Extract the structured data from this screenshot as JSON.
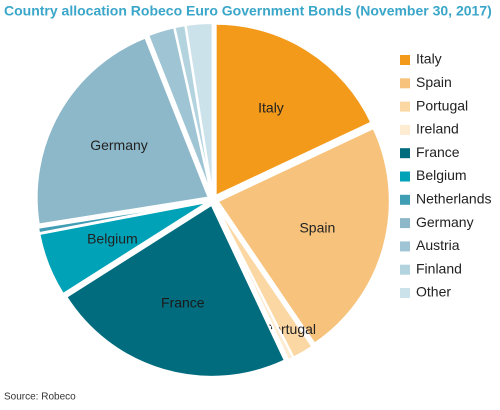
{
  "chart_data": {
    "type": "pie",
    "title": "Country allocation Robeco Euro Government Bonds (November 30, 2017)",
    "categories": [
      "Italy",
      "Spain",
      "Portugal",
      "Ireland",
      "France",
      "Belgium",
      "Netherlands",
      "Germany",
      "Austria",
      "Finland",
      "Other"
    ],
    "values": [
      18,
      22.5,
      2,
      0.5,
      23,
      6,
      0.5,
      21.5,
      2.5,
      1,
      2.5
    ],
    "colors": [
      "#f39a1b",
      "#f7c27b",
      "#fbd7a3",
      "#fdebd2",
      "#006c7d",
      "#00a2b7",
      "#3f9db4",
      "#8db8ca",
      "#9fc5d4",
      "#b3d3df",
      "#cce2ea"
    ],
    "inner_labels": [
      true,
      true,
      true,
      false,
      true,
      true,
      false,
      true,
      false,
      false,
      false
    ],
    "source": "Source: Robeco"
  }
}
